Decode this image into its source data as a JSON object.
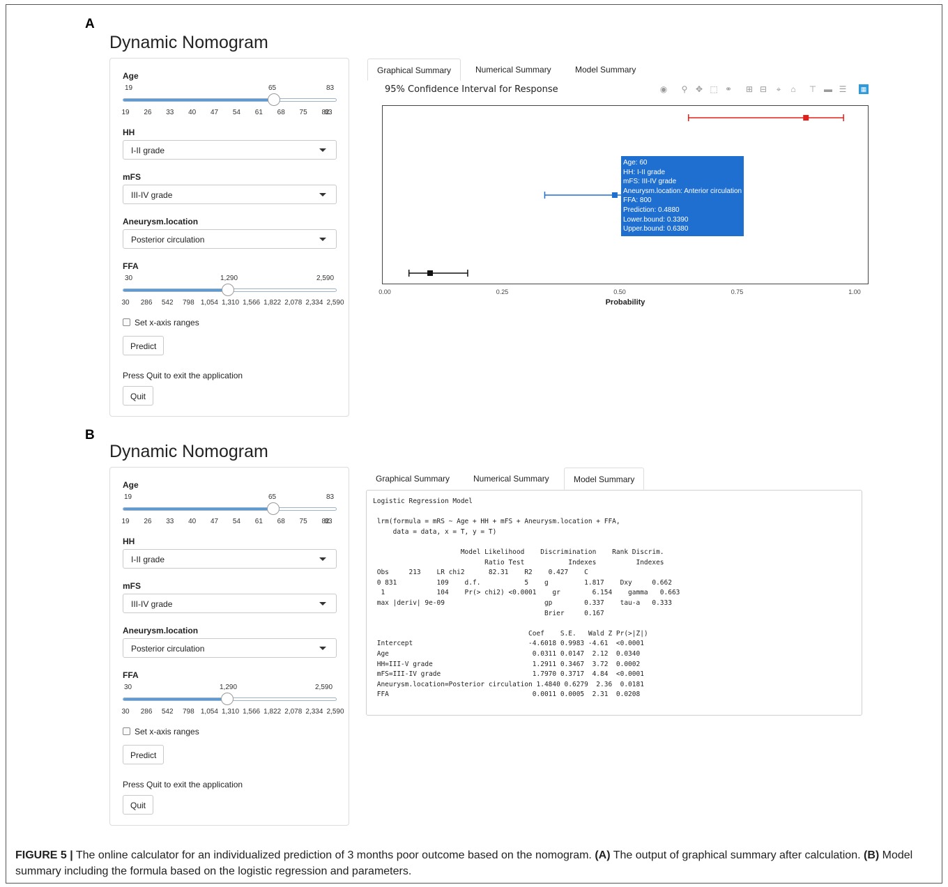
{
  "panel_a": {
    "letter": "A",
    "title": "Dynamic Nomogram",
    "sidebar": {
      "age_label": "Age",
      "age_min": "19",
      "age_value": "65",
      "age_max": "83",
      "age_ticks": [
        "19",
        "26",
        "33",
        "40",
        "47",
        "54",
        "61",
        "68",
        "75",
        "82"
      ],
      "age_tick_end": "83",
      "age_fraction": 0.71875,
      "hh_label": "HH",
      "hh_value": "I-II grade",
      "mfs_label": "mFS",
      "mfs_value": "III-IV grade",
      "loc_label": "Aneurysm.location",
      "loc_value": "Posterior circulation",
      "ffa_label": "FFA",
      "ffa_min": "30",
      "ffa_value": "1,290",
      "ffa_max": "2,590",
      "ffa_ticks": [
        "30",
        "286",
        "542",
        "798",
        "1,054",
        "1,310",
        "1,566",
        "1,822",
        "2,078",
        "2,334",
        "2,590"
      ],
      "ffa_fraction": 0.4922,
      "checkbox_label": "Set x-axis ranges",
      "predict_label": "Predict",
      "quit_note": "Press Quit to exit the application",
      "quit_label": "Quit"
    },
    "tabs": [
      "Graphical Summary",
      "Numerical Summary",
      "Model Summary"
    ],
    "active_tab": 0,
    "plot_title": "95% Confidence Interval for Response",
    "modebar_icons": [
      "camera-icon",
      "zoom-icon",
      "pan-icon",
      "box-select-icon",
      "lasso-icon",
      "zoom-in-icon",
      "zoom-out-icon",
      "autoscale-icon",
      "home-icon",
      "spike-icon",
      "hover-closest-icon",
      "hover-compare-icon",
      "plotly-logo-icon"
    ],
    "tooltip_lines": [
      "Age: 60",
      "HH: I-II grade",
      "mFS: III-IV grade",
      "Aneurysm.location: Anterior circulation",
      "FFA:  800",
      "Prediction: 0.4880",
      "Lower.bound: 0.3390",
      "Upper.bound: 0.6380"
    ]
  },
  "chart_data": {
    "type": "scatter",
    "title": "95% Confidence Interval for Response",
    "xlabel": "Probability",
    "ylabel": "",
    "xlim": [
      0,
      1
    ],
    "x_ticks": [
      "0.00",
      "0.25",
      "0.50",
      "0.75",
      "1.00"
    ],
    "grid": false,
    "series": [
      {
        "prediction": 0.895,
        "lower": 0.645,
        "upper": 0.975,
        "color": "#e0201b"
      },
      {
        "prediction": 0.488,
        "lower": 0.339,
        "upper": 0.638,
        "color": "#1f6fd1"
      },
      {
        "prediction": 0.095,
        "lower": 0.05,
        "upper": 0.175,
        "color": "#111111"
      }
    ]
  },
  "panel_b": {
    "letter": "B",
    "title": "Dynamic Nomogram",
    "tabs": [
      "Graphical Summary",
      "Numerical Summary",
      "Model Summary"
    ],
    "active_tab": 2,
    "model_summary_lines": [
      "Logistic Regression Model",
      "",
      " lrm(formula = mRS ~ Age + HH + mFS + Aneurysm.location + FFA,",
      "     data = data, x = T, y = T)",
      "",
      "                      Model Likelihood    Discrimination    Rank Discrim.",
      "                            Ratio Test           Indexes          Indexes",
      " Obs     213    LR chi2      82.31    R2    0.427    C",
      " 0 831          109    d.f.           5    g         1.817    Dxy     0.662",
      "  1             104    Pr(> chi2) <0.0001    gr        6.154    gamma   0.663",
      " max |deriv| 9e-09                         gp        0.337    tau-a   0.333",
      "                                           Brier     0.167",
      "",
      "                                       Coef    S.E.   Wald Z Pr(>|Z|)",
      " Intercept                             -4.6018 0.9983 -4.61  <0.0001",
      " Age                                    0.0311 0.0147  2.12  0.0340",
      " HH=III-V grade                         1.2911 0.3467  3.72  0.0002",
      " mFS=III-IV grade                       1.7970 0.3717  4.84  <0.0001",
      " Aneurysm.location=Posterior circulation 1.4840 0.6279  2.36  0.0181",
      " FFA                                    0.0011 0.0005  2.31  0.0208"
    ]
  },
  "caption": {
    "label": "FIGURE 5 |",
    "text1": " The online calculator for an individualized prediction of 3 months poor outcome based on the nomogram. ",
    "a_label": "(A)",
    "text2": " The output of graphical summary after calculation. ",
    "b_label": "(B)",
    "text3": " Model summary including the formula based on the logistic regression and parameters."
  }
}
